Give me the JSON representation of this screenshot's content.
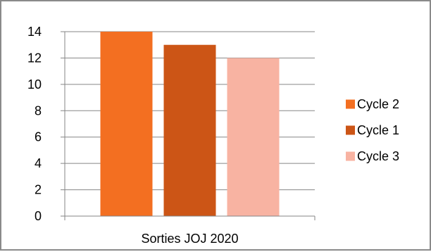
{
  "chart_data": {
    "type": "bar",
    "title": "",
    "xlabel": "",
    "ylabel": "",
    "categories": [
      "Sorties JOJ 2020"
    ],
    "series": [
      {
        "name": "Cycle 2",
        "values": [
          14
        ],
        "color": "#F36F21"
      },
      {
        "name": "Cycle 1",
        "values": [
          13
        ],
        "color": "#CC5516"
      },
      {
        "name": "Cycle 3",
        "values": [
          12
        ],
        "color": "#F8B3A2"
      }
    ],
    "ylim": [
      0,
      14
    ],
    "yticks": [
      0,
      2,
      4,
      6,
      8,
      10,
      12,
      14
    ],
    "grid": true,
    "legend_position": "right",
    "axis_color": "#868686",
    "grid_color": "#868686"
  }
}
